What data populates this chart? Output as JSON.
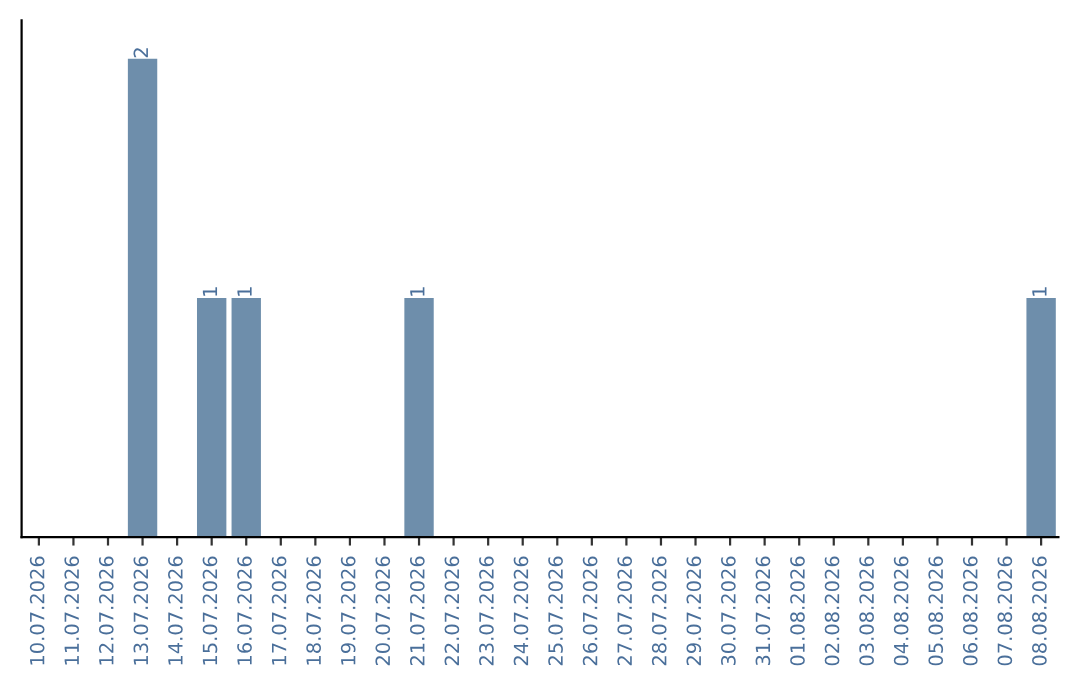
{
  "chart_data": {
    "type": "bar",
    "categories": [
      "10.07.2026",
      "11.07.2026",
      "12.07.2026",
      "13.07.2026",
      "14.07.2026",
      "15.07.2026",
      "16.07.2026",
      "17.07.2026",
      "18.07.2026",
      "19.07.2026",
      "20.07.2026",
      "21.07.2026",
      "22.07.2026",
      "23.07.2026",
      "24.07.2026",
      "25.07.2026",
      "26.07.2026",
      "27.07.2026",
      "28.07.2026",
      "29.07.2026",
      "30.07.2026",
      "31.07.2026",
      "01.08.2026",
      "02.08.2026",
      "03.08.2026",
      "04.08.2026",
      "05.08.2026",
      "06.08.2026",
      "07.08.2026",
      "08.08.2026"
    ],
    "values": [
      0,
      0,
      0,
      2,
      0,
      1,
      1,
      0,
      0,
      0,
      0,
      1,
      0,
      0,
      0,
      0,
      0,
      0,
      0,
      0,
      0,
      0,
      0,
      0,
      0,
      0,
      0,
      0,
      0,
      1
    ],
    "value_labels": [
      null,
      null,
      null,
      "2",
      null,
      "1",
      "1",
      null,
      null,
      null,
      null,
      "1",
      null,
      null,
      null,
      null,
      null,
      null,
      null,
      null,
      null,
      null,
      null,
      null,
      null,
      null,
      null,
      null,
      null,
      "1"
    ],
    "color": "#6e8eab",
    "tick_labels": "x",
    "grid": false
  }
}
